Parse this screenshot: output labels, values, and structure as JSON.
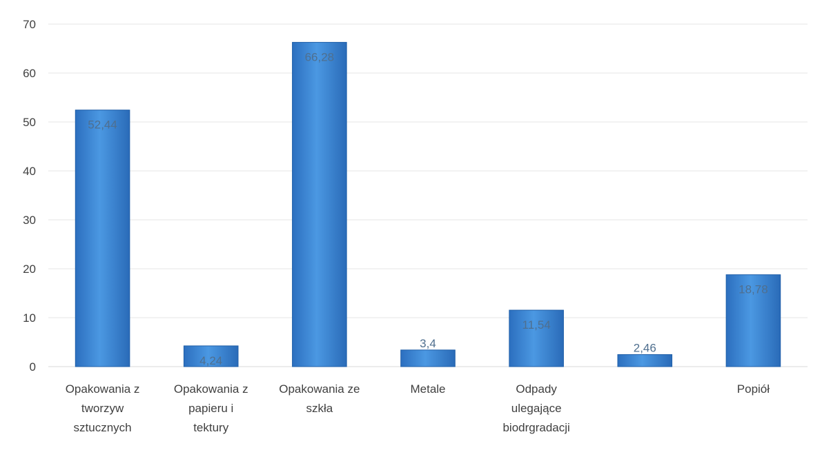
{
  "chart_data": {
    "type": "bar",
    "title": "",
    "xlabel": "",
    "ylabel": "",
    "categories": [
      [
        "Opakowania z",
        "tworzyw",
        "sztucznych"
      ],
      [
        "Opakowania z",
        "papieru i",
        "tektury"
      ],
      [
        "Opakowania ze",
        "szkła"
      ],
      [
        "Metale"
      ],
      [
        "Odpady",
        "ulegające",
        "biodrgradacji"
      ],
      [
        ""
      ],
      [
        "Popiół"
      ]
    ],
    "values": [
      52.44,
      4.24,
      66.28,
      3.4,
      11.54,
      2.46,
      18.78
    ],
    "data_labels": [
      "52,44",
      "4,24",
      "66,28",
      "3,4",
      "11,54",
      "2,46",
      "18,78"
    ],
    "ylim": [
      0,
      70
    ],
    "yticks": [
      0,
      10,
      20,
      30,
      40,
      50,
      60,
      70
    ],
    "grid": true,
    "legend": "none",
    "colors": {
      "bar": "#3a87d5",
      "bar_dark": "#1f5fa8",
      "grid": "#e6e6e6",
      "axis_text": "#404040",
      "data_label": "#4f6f8f"
    }
  }
}
